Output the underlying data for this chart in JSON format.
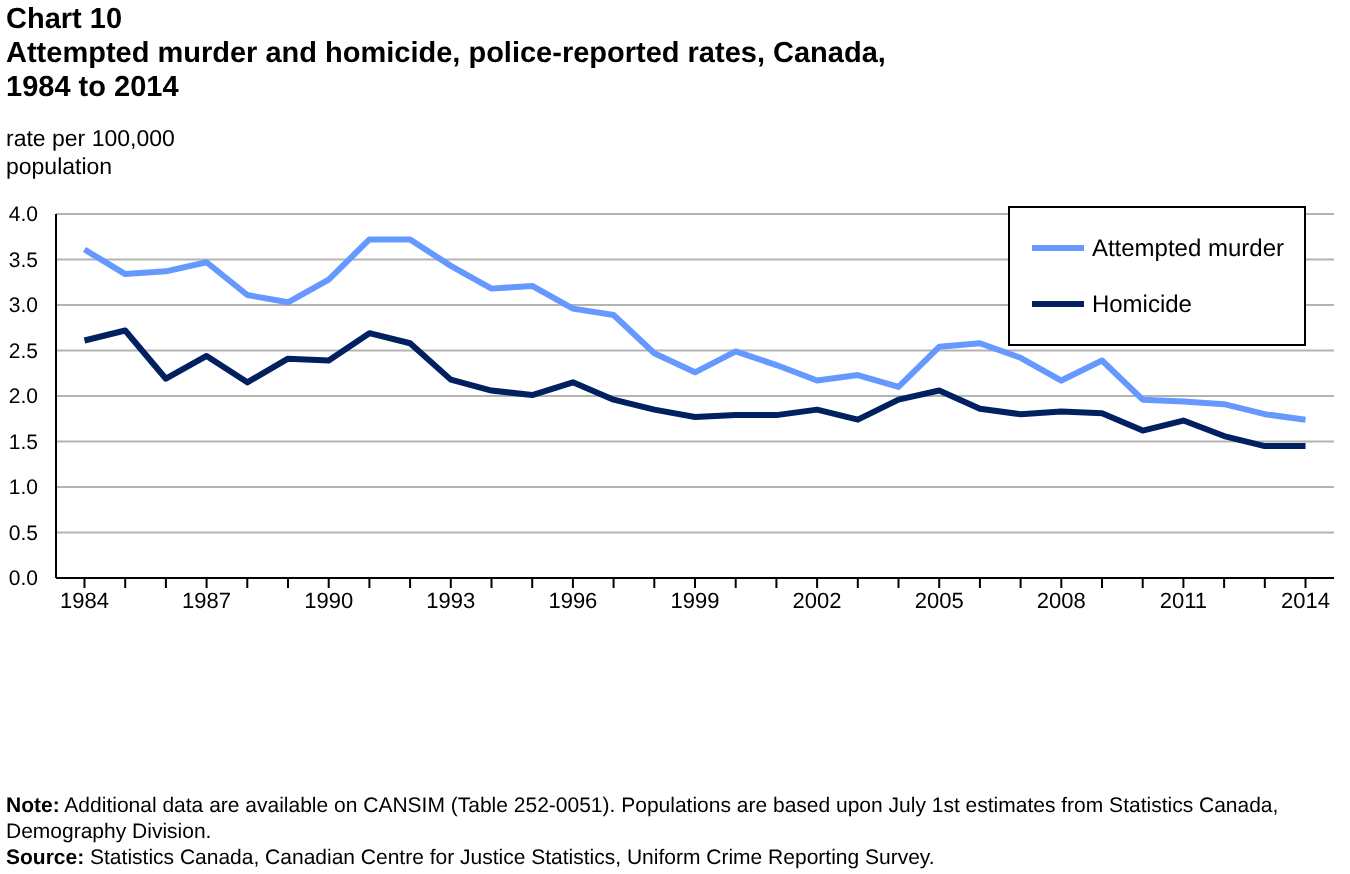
{
  "chart_data": {
    "type": "line",
    "title": "Chart 10",
    "subtitle": "Attempted murder and homicide, police-reported rates, Canada, 1984 to 2014",
    "ylabel": "rate per 100,000 population",
    "x": [
      1984,
      1985,
      1986,
      1987,
      1988,
      1989,
      1990,
      1991,
      1992,
      1993,
      1994,
      1995,
      1996,
      1997,
      1998,
      1999,
      2000,
      2001,
      2002,
      2003,
      2004,
      2005,
      2006,
      2007,
      2008,
      2009,
      2010,
      2011,
      2012,
      2013,
      2014
    ],
    "series": [
      {
        "name": "Attempted murder",
        "color": "#6699ff",
        "values": [
          3.61,
          3.34,
          3.37,
          3.47,
          3.11,
          3.03,
          3.28,
          3.72,
          3.72,
          3.43,
          3.18,
          3.21,
          2.96,
          2.89,
          2.47,
          2.26,
          2.49,
          2.34,
          2.17,
          2.23,
          2.1,
          2.54,
          2.58,
          2.42,
          2.17,
          2.39,
          1.96,
          1.94,
          1.91,
          1.8,
          1.74
        ]
      },
      {
        "name": "Homicide",
        "color": "#002060",
        "values": [
          2.61,
          2.72,
          2.19,
          2.44,
          2.15,
          2.41,
          2.39,
          2.69,
          2.58,
          2.18,
          2.06,
          2.01,
          2.15,
          1.96,
          1.85,
          1.77,
          1.79,
          1.79,
          1.85,
          1.74,
          1.96,
          2.06,
          1.86,
          1.8,
          1.83,
          1.81,
          1.62,
          1.73,
          1.56,
          1.45,
          1.45
        ]
      }
    ],
    "xlim": [
      1983.3,
      2014.7
    ],
    "xticks": [
      1984,
      {
        "value": 1985,
        "label": null
      },
      {
        "value": 1986,
        "label": null
      },
      1987,
      {
        "value": 1988,
        "label": null
      },
      {
        "value": 1989,
        "label": null
      },
      1990,
      {
        "value": 1991,
        "label": null
      },
      {
        "value": 1992,
        "label": null
      },
      1993,
      {
        "value": 1994,
        "label": null
      },
      {
        "value": 1995,
        "label": null
      },
      1996,
      {
        "value": 1997,
        "label": null
      },
      {
        "value": 1998,
        "label": null
      },
      1999,
      {
        "value": 2000,
        "label": null
      },
      {
        "value": 2001,
        "label": null
      },
      2002,
      {
        "value": 2003,
        "label": null
      },
      {
        "value": 2004,
        "label": null
      },
      2005,
      {
        "value": 2006,
        "label": null
      },
      {
        "value": 2007,
        "label": null
      },
      2008,
      {
        "value": 2009,
        "label": null
      },
      {
        "value": 2010,
        "label": null
      },
      2011,
      {
        "value": 2012,
        "label": null
      },
      {
        "value": 2013,
        "label": null
      },
      2014
    ],
    "ylim": [
      0,
      4
    ],
    "yticks": [
      {
        "value": 0,
        "label": "0.0"
      },
      0.5,
      {
        "value": 1,
        "label": "1.0"
      },
      1.5,
      {
        "value": 2,
        "label": "2.0"
      },
      2.5,
      {
        "value": 3,
        "label": "3.0"
      },
      3.5,
      {
        "value": 4,
        "label": "4.0"
      }
    ],
    "grid": "y",
    "legend": "top right",
    "marker": "none",
    "line_style": "solid",
    "annotations": [
      "Note: Additional data are available on CANSIM (Table 252-0051). Populations are based upon July 1st estimates from Statistics Canada, Demography Division.",
      "Source: Statistics Canada, Canadian Centre for Justice Statistics, Uniform Crime Reporting Survey."
    ]
  }
}
